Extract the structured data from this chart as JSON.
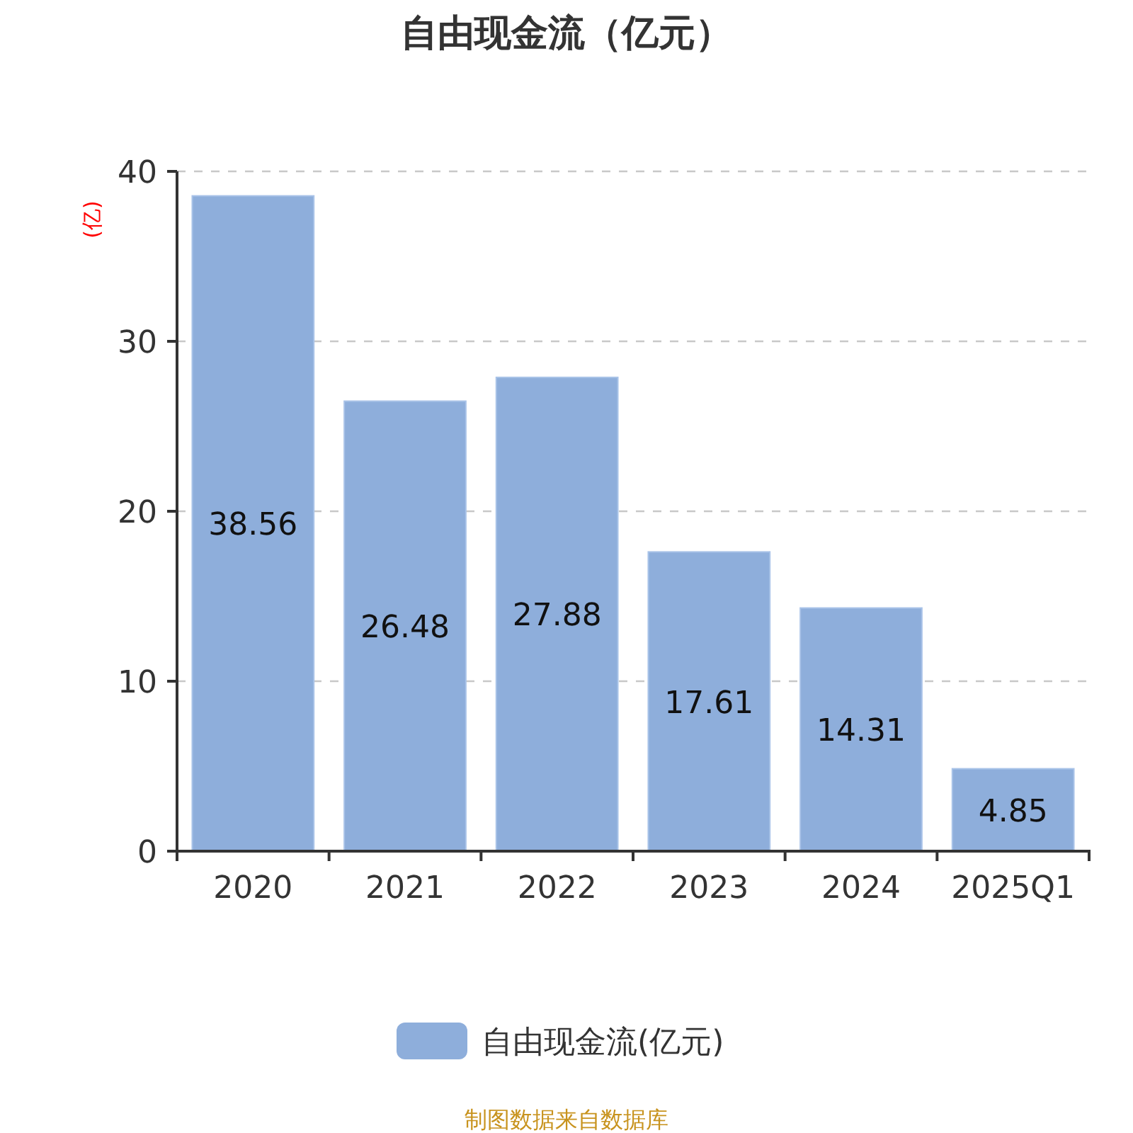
{
  "chart_data": {
    "type": "bar",
    "title": "自由现金流（亿元）",
    "ylabel": "(亿)",
    "categories": [
      "2020",
      "2021",
      "2022",
      "2023",
      "2024",
      "2025Q1"
    ],
    "series": [
      {
        "name": "自由现金流(亿元)",
        "color": "#8eaedb",
        "values": [
          38.56,
          26.48,
          27.88,
          17.61,
          14.31,
          4.85
        ]
      }
    ],
    "ylim": [
      0,
      40
    ],
    "yticks": [
      0,
      10,
      20,
      30,
      40
    ],
    "grid": "y",
    "legend": "bottom",
    "data_labels": true,
    "annotations": [
      "制图数据来自数据库"
    ]
  }
}
